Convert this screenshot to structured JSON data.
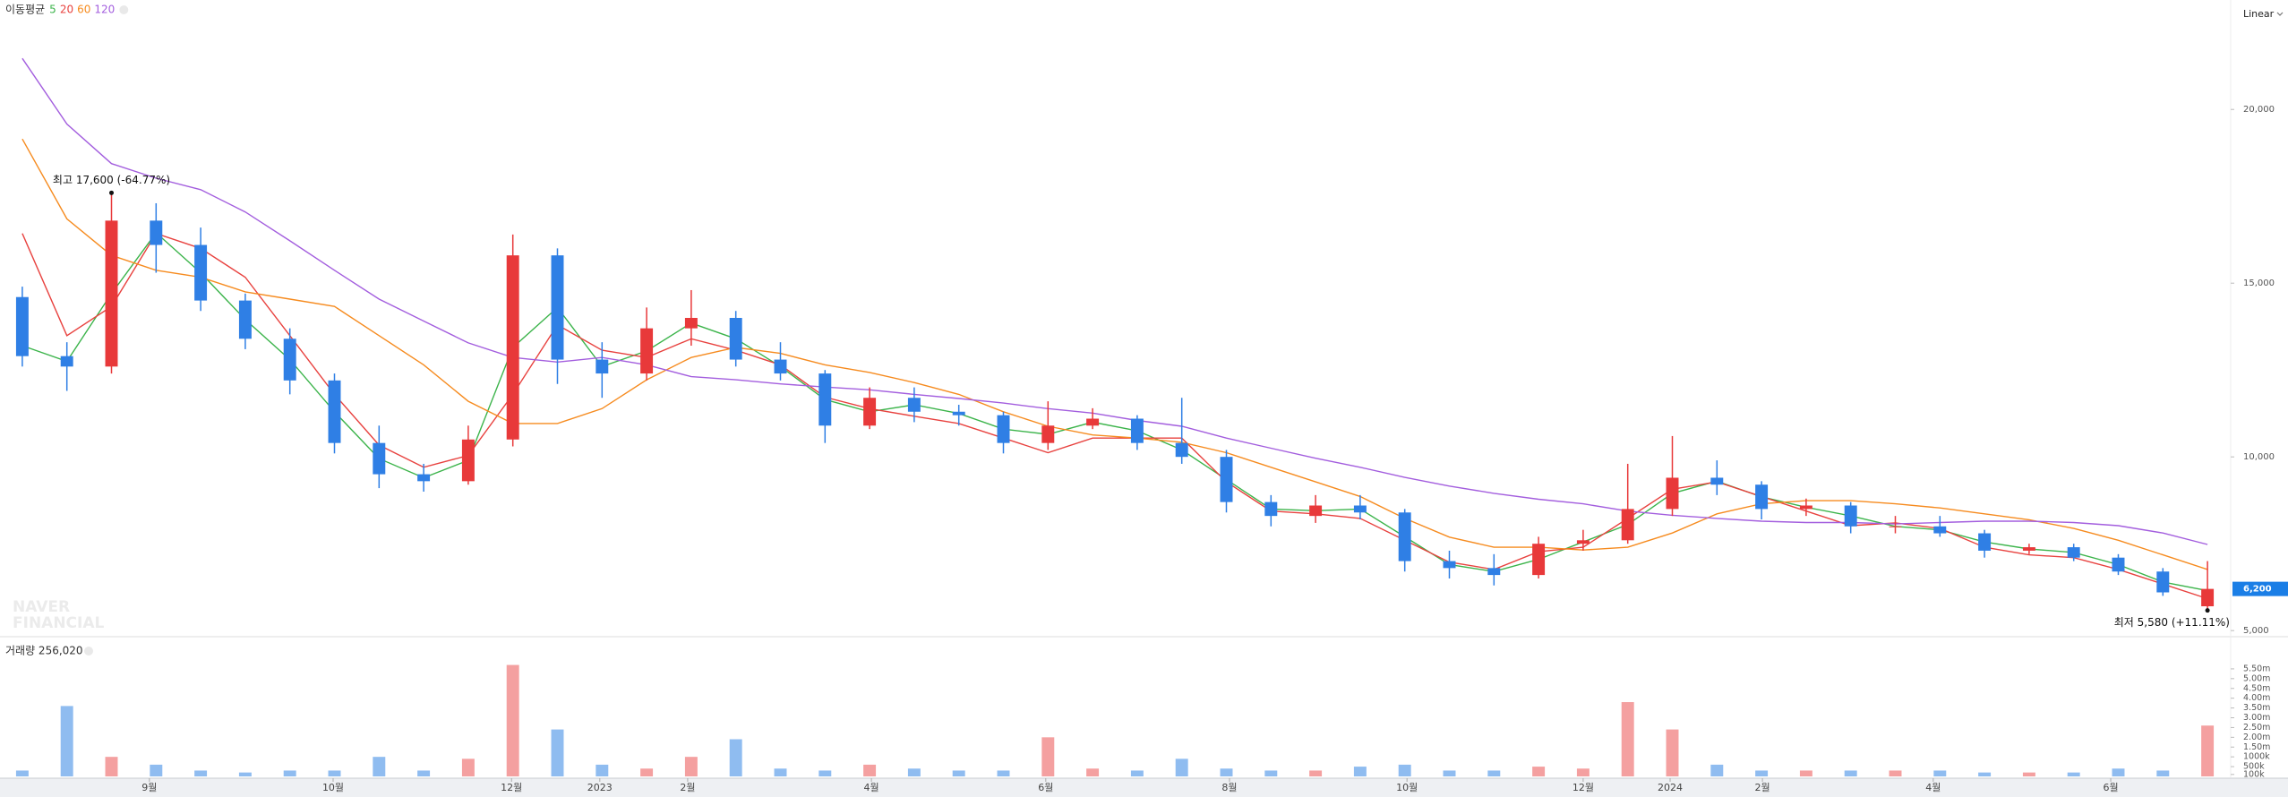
{
  "chart_data": [
    {
      "type": "candlestick",
      "legend_title": "이동평균",
      "scale": "Linear",
      "watermark": [
        "NAVER",
        "FINANCIAL"
      ],
      "xlim": [
        -0.5,
        49.5
      ],
      "xticks": [
        {
          "value": 2.85,
          "label": "9월"
        },
        {
          "value": 6.97,
          "label": "10월"
        },
        {
          "value": 10.97,
          "label": "12월"
        },
        {
          "value": 12.95,
          "label": "2023"
        },
        {
          "value": 14.92,
          "label": "2월"
        },
        {
          "value": 19.04,
          "label": "4월"
        },
        {
          "value": 22.95,
          "label": "6월"
        },
        {
          "value": 27.07,
          "label": "8월"
        },
        {
          "value": 31.05,
          "label": "10월"
        },
        {
          "value": 35.0,
          "label": "12월"
        },
        {
          "value": 36.95,
          "label": "2024"
        },
        {
          "value": 39.02,
          "label": "2월"
        },
        {
          "value": 42.85,
          "label": "4월"
        },
        {
          "value": 46.83,
          "label": "6월"
        }
      ],
      "ylim": [
        4850,
        23150
      ],
      "yticks": [
        {
          "value": 20000,
          "label": "20,000"
        },
        {
          "value": 15000,
          "label": "15,000"
        },
        {
          "value": 10000,
          "label": "10,000"
        },
        {
          "value": 5000,
          "label": "5,000"
        }
      ],
      "grid": false,
      "up_color": "#e8393a",
      "down_color": "#2f7fe5",
      "open": [
        14600,
        12900,
        12600,
        16800,
        16100,
        14500,
        13400,
        12200,
        10400,
        9500,
        9300,
        10500,
        15800,
        12800,
        12400,
        13700,
        14000,
        12800,
        12400,
        10900,
        11700,
        11300,
        11200,
        10400,
        10900,
        11100,
        10400,
        10000,
        8700,
        8300,
        8600,
        8400,
        7000,
        6800,
        6600,
        7500,
        7600,
        8500,
        9400,
        9200,
        8500,
        8600,
        8000,
        8000,
        7800,
        7300,
        7400,
        7100,
        6700,
        5700
      ],
      "high": [
        14900,
        13300,
        17600,
        17300,
        16600,
        14700,
        13700,
        12400,
        10900,
        9800,
        10900,
        16400,
        16000,
        13300,
        14300,
        14800,
        14200,
        13300,
        12500,
        12000,
        12000,
        11500,
        11300,
        11600,
        11400,
        11200,
        11700,
        10200,
        8900,
        8900,
        8900,
        8500,
        7300,
        7200,
        7700,
        7900,
        9800,
        10600,
        9900,
        9300,
        8800,
        8700,
        8300,
        8300,
        7900,
        7500,
        7500,
        7200,
        6800,
        7000
      ],
      "low": [
        12600,
        11900,
        12400,
        15300,
        14200,
        13100,
        11800,
        10100,
        9100,
        9000,
        9200,
        10300,
        12100,
        11700,
        12200,
        13200,
        12600,
        12200,
        10400,
        10800,
        11000,
        10900,
        10100,
        10200,
        10800,
        10200,
        9800,
        8400,
        8000,
        8100,
        8200,
        6700,
        6500,
        6300,
        6500,
        7300,
        7500,
        8300,
        8900,
        8200,
        8300,
        7800,
        7800,
        7700,
        7100,
        7200,
        7000,
        6600,
        6000,
        5580
      ],
      "close": [
        12900,
        12600,
        16800,
        16100,
        14500,
        13400,
        12200,
        10400,
        9500,
        9300,
        10500,
        15800,
        12800,
        12400,
        13700,
        14000,
        12800,
        12400,
        10900,
        11700,
        11300,
        11200,
        10400,
        10900,
        11100,
        10400,
        10000,
        8700,
        8300,
        8600,
        8400,
        7000,
        6800,
        6600,
        7500,
        7600,
        8500,
        9400,
        9200,
        8500,
        8600,
        8000,
        8000,
        7800,
        7300,
        7400,
        7100,
        6700,
        6100,
        6200
      ],
      "series": [
        {
          "name": "5",
          "color": "#3cb44b",
          "values": [
            13200,
            12750,
            14700,
            16450,
            15300,
            13950,
            12800,
            11300,
            9950,
            9400,
            9900,
            13150,
            14300,
            12600,
            13050,
            13850,
            13400,
            12600,
            11650,
            11300,
            11500,
            11250,
            10800,
            10650,
            11000,
            10750,
            10200,
            9350,
            8500,
            8450,
            8500,
            7700,
            6900,
            6700,
            7050,
            7550,
            8050,
            8950,
            9300,
            8850,
            8550,
            8300,
            8000,
            7900,
            7550,
            7350,
            7250,
            6900,
            6400,
            6150
          ]
        },
        {
          "name": "20",
          "color": "#e8423f",
          "values": [
            16430,
            13490,
            14330,
            16430,
            16000,
            15170,
            13490,
            11800,
            10340,
            9700,
            10040,
            11800,
            13800,
            13070,
            12860,
            13400,
            13070,
            12650,
            11720,
            11390,
            11170,
            10960,
            10540,
            10120,
            10540,
            10540,
            10540,
            9280,
            8440,
            8360,
            8230,
            7600,
            6970,
            6760,
            7270,
            7400,
            8230,
            9070,
            9280,
            8860,
            8440,
            8020,
            8100,
            7940,
            7400,
            7180,
            7100,
            6760,
            6340,
            5920
          ]
        },
        {
          "name": "60",
          "color": "#f68b1f",
          "values": [
            19150,
            16850,
            15800,
            15370,
            15170,
            14750,
            14540,
            14330,
            13490,
            12650,
            11600,
            10960,
            10960,
            11390,
            12220,
            12860,
            13150,
            12980,
            12650,
            12430,
            12140,
            11800,
            11300,
            10880,
            10630,
            10540,
            10420,
            10120,
            9700,
            9280,
            8860,
            8230,
            7690,
            7400,
            7400,
            7320,
            7400,
            7810,
            8360,
            8650,
            8740,
            8740,
            8650,
            8530,
            8360,
            8190,
            7940,
            7600,
            7180,
            6760
          ]
        },
        {
          "name": "120",
          "color": "#a35ede",
          "values": [
            21470,
            19580,
            18440,
            18020,
            17690,
            17050,
            16220,
            15370,
            14540,
            13910,
            13280,
            12860,
            12730,
            12860,
            12650,
            12310,
            12220,
            12100,
            12010,
            11930,
            11800,
            11680,
            11550,
            11390,
            11260,
            11050,
            10880,
            10540,
            10250,
            9960,
            9700,
            9410,
            9160,
            8950,
            8780,
            8650,
            8440,
            8320,
            8230,
            8150,
            8110,
            8110,
            8070,
            8110,
            8150,
            8150,
            8110,
            8020,
            7810,
            7480
          ]
        }
      ],
      "last_price": {
        "value": 6200,
        "label": "6,200"
      },
      "last_price_color": "#1a7ee6",
      "annotations": [
        {
          "x": 2,
          "value": 17600,
          "text": "최고 17,600 (-64.77%)"
        },
        {
          "x": 49,
          "value": 5580,
          "text": "최저 5,580 (+11.11%)"
        }
      ]
    },
    {
      "type": "bar",
      "title": "거래량 256,020",
      "ylim": [
        0,
        6000000
      ],
      "yticks": [
        {
          "value": 5500000,
          "label": "5.50m"
        },
        {
          "value": 5000000,
          "label": "5.00m"
        },
        {
          "value": 4500000,
          "label": "4.50m"
        },
        {
          "value": 4000000,
          "label": "4.00m"
        },
        {
          "value": 3500000,
          "label": "3.50m"
        },
        {
          "value": 3000000,
          "label": "3.00m"
        },
        {
          "value": 2500000,
          "label": "2.50m"
        },
        {
          "value": 2000000,
          "label": "2.00m"
        },
        {
          "value": 1500000,
          "label": "1.50m"
        },
        {
          "value": 1000000,
          "label": "1000k"
        },
        {
          "value": 500000,
          "label": "500k"
        },
        {
          "value": 100000,
          "label": "100k"
        }
      ],
      "up_color": "#f4a0a0",
      "down_color": "#8fbcf0",
      "values": [
        300000,
        3600000,
        1000000,
        600000,
        300000,
        200000,
        300000,
        300000,
        1000000,
        300000,
        900000,
        5700000,
        2400000,
        600000,
        400000,
        1000000,
        1900000,
        400000,
        300000,
        600000,
        400000,
        300000,
        300000,
        2000000,
        400000,
        300000,
        900000,
        400000,
        300000,
        300000,
        500000,
        600000,
        300000,
        300000,
        500000,
        400000,
        3800000,
        2400000,
        600000,
        300000,
        300000,
        300000,
        300000,
        300000,
        200000,
        200000,
        200000,
        400000,
        300000,
        2600000
      ]
    }
  ]
}
